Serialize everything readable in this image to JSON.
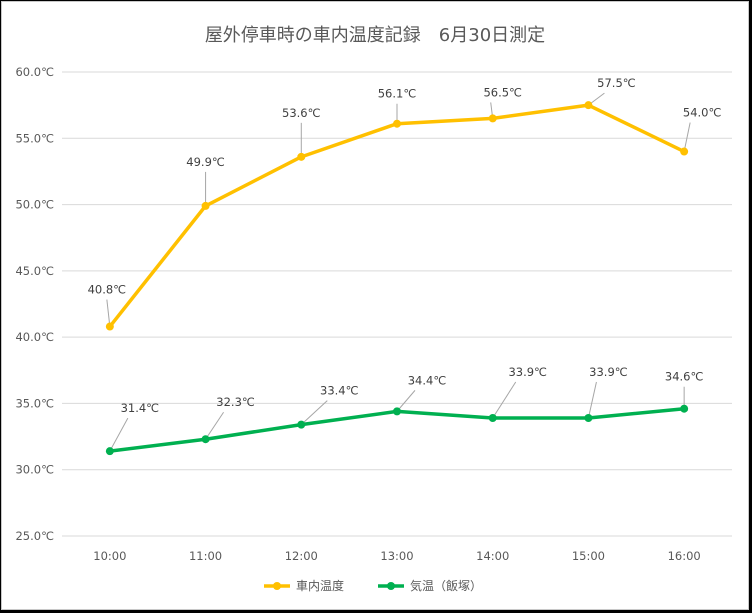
{
  "chart_data": {
    "type": "line",
    "title": "屋外停車時の車内温度記録　6月30日測定",
    "categories": [
      "10:00",
      "11:00",
      "12:00",
      "13:00",
      "14:00",
      "15:00",
      "16:00"
    ],
    "series": [
      {
        "name": "車内温度",
        "color": "#FFC000",
        "values": [
          40.8,
          49.9,
          53.6,
          56.1,
          56.5,
          57.5,
          54.0
        ],
        "labels": [
          "40.8℃",
          "49.9℃",
          "53.6℃",
          "56.1℃",
          "56.5℃",
          "57.5℃",
          "54.0℃"
        ]
      },
      {
        "name": "気温（飯塚）",
        "color": "#00B050",
        "values": [
          31.4,
          32.3,
          33.4,
          34.4,
          33.9,
          33.9,
          34.6
        ],
        "labels": [
          "31.4℃",
          "32.3℃",
          "33.4℃",
          "34.4℃",
          "33.9℃",
          "33.9℃",
          "34.6℃"
        ]
      }
    ],
    "ylim": [
      25,
      60
    ],
    "yticks": [
      "25.0℃",
      "30.0℃",
      "35.0℃",
      "40.0℃",
      "45.0℃",
      "50.0℃",
      "55.0℃",
      "60.0℃"
    ],
    "ytick_values": [
      25,
      30,
      35,
      40,
      45,
      50,
      55,
      60
    ],
    "grid": true,
    "legend_position": "bottom"
  }
}
